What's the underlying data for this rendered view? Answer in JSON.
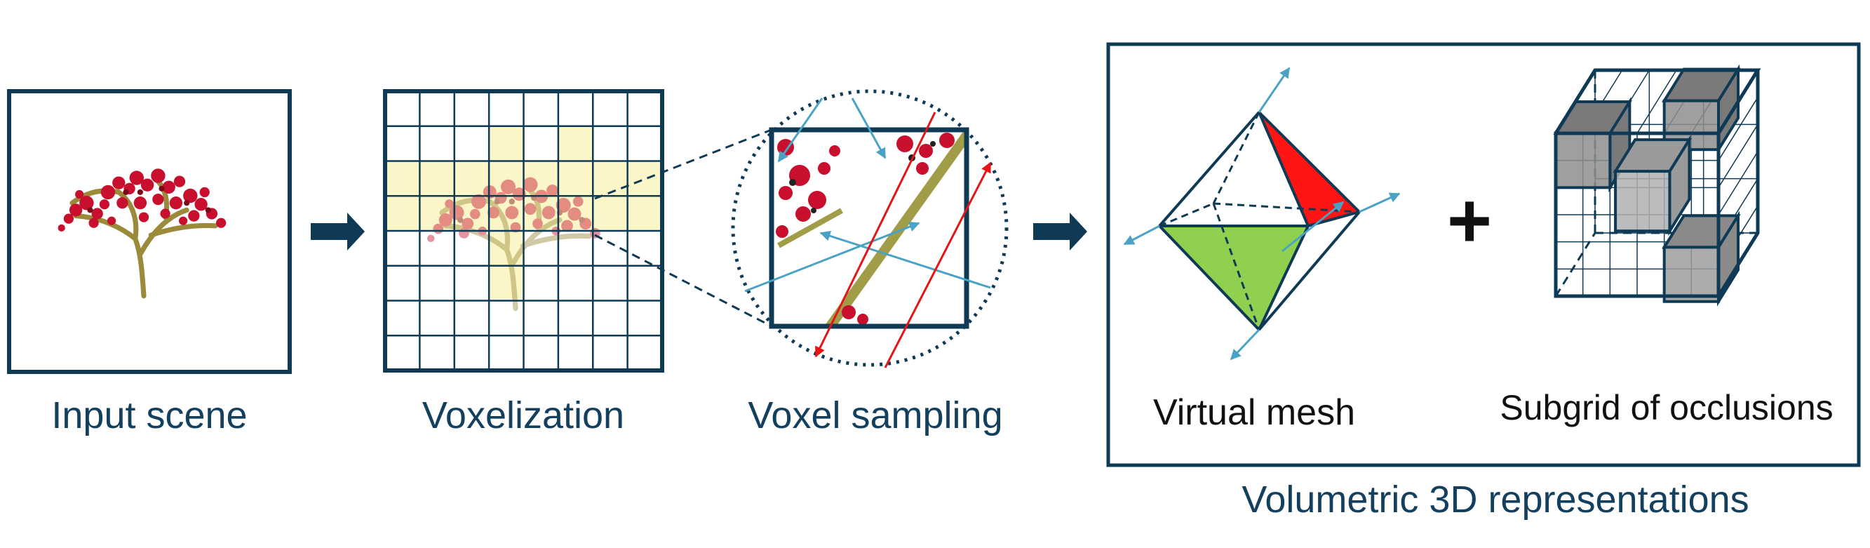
{
  "labels": {
    "input_scene": "Input scene",
    "voxelization": "Voxelization",
    "voxel_sampling": "Voxel sampling",
    "virtual_mesh": "Virtual mesh",
    "subgrid": "Subgrid of occlusions",
    "plus": "+",
    "volumetric": "Volumetric 3D representations"
  },
  "colors": {
    "navy": "#0f3a55",
    "ray_blue": "#4aa3c4",
    "ray_red": "#e61414",
    "voxel_highlight": "#fbf6c8",
    "face_red": "#ff1414",
    "face_green": "#8fd14f",
    "cube_gray": "#9a9a9a"
  },
  "icons": [
    "tree-image",
    "arrow-right-icon",
    "octahedron-icon",
    "cube-grid-icon"
  ]
}
